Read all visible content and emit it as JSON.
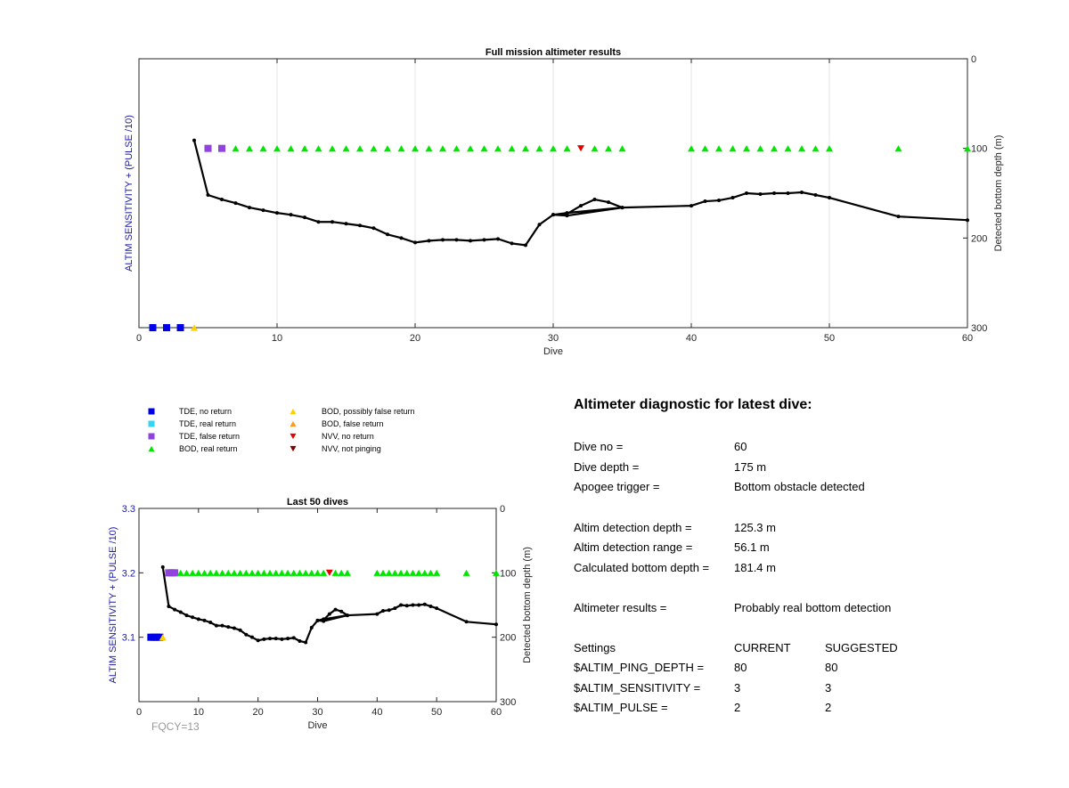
{
  "colors": {
    "tde_no_return": "#0000e6",
    "tde_real_return": "#33d6f0",
    "tde_false_return": "#8e44dd",
    "bod_real_return": "#00e600",
    "bod_possibly_false": "#ffd000",
    "bod_false": "#ff9a1a",
    "nvv_no_return": "#e60000",
    "nvv_not_pinging": "#800000",
    "line": "#000000",
    "grid": "#e4e4e4"
  },
  "legend": [
    {
      "label": "TDE, no return",
      "shape": "square",
      "color_key": "tde_no_return"
    },
    {
      "label": "TDE, real return",
      "shape": "square",
      "color_key": "tde_real_return"
    },
    {
      "label": "TDE, false return",
      "shape": "square",
      "color_key": "tde_false_return"
    },
    {
      "label": "BOD, real return",
      "shape": "triangle-up",
      "color_key": "bod_real_return"
    },
    {
      "label": "BOD, possibly false return",
      "shape": "triangle-up",
      "color_key": "bod_possibly_false"
    },
    {
      "label": "BOD, false return",
      "shape": "triangle-up",
      "color_key": "bod_false"
    },
    {
      "label": "NVV, no return",
      "shape": "triangle-down",
      "color_key": "nvv_no_return"
    },
    {
      "label": "NVV, not pinging",
      "shape": "triangle-down",
      "color_key": "nvv_not_pinging"
    }
  ],
  "chart_data": [
    {
      "type": "scatter",
      "title": "Full mission altimeter results",
      "xlabel": "Dive",
      "ylabel_left": "ALTIM SENSITIVITY + (PULSE /10)",
      "ylabel_right": "Detected bottom depth (m)",
      "xlim": [
        0,
        60
      ],
      "xticks": [
        0,
        10,
        20,
        30,
        40,
        50,
        60
      ],
      "ylim_right": [
        0,
        300
      ],
      "yticks_right": [
        0,
        100,
        200,
        300
      ],
      "yticks_left": [],
      "grid": "x",
      "marker_baseline": 300,
      "markers": [
        {
          "x": 1,
          "y": 300,
          "cat": "tde_no_return"
        },
        {
          "x": 2,
          "y": 300,
          "cat": "tde_no_return"
        },
        {
          "x": 3,
          "y": 300,
          "cat": "tde_no_return"
        },
        {
          "x": 4,
          "y": 300,
          "cat": "bod_possibly_false"
        },
        {
          "x": 5,
          "y": 100,
          "cat": "tde_false_return"
        },
        {
          "x": 6,
          "y": 100,
          "cat": "tde_false_return"
        },
        {
          "x": 7,
          "y": 100,
          "cat": "bod_real_return"
        },
        {
          "x": 8,
          "y": 100,
          "cat": "bod_real_return"
        },
        {
          "x": 9,
          "y": 100,
          "cat": "bod_real_return"
        },
        {
          "x": 10,
          "y": 100,
          "cat": "bod_real_return"
        },
        {
          "x": 11,
          "y": 100,
          "cat": "bod_real_return"
        },
        {
          "x": 12,
          "y": 100,
          "cat": "bod_real_return"
        },
        {
          "x": 13,
          "y": 100,
          "cat": "bod_real_return"
        },
        {
          "x": 14,
          "y": 100,
          "cat": "bod_real_return"
        },
        {
          "x": 15,
          "y": 100,
          "cat": "bod_real_return"
        },
        {
          "x": 16,
          "y": 100,
          "cat": "bod_real_return"
        },
        {
          "x": 17,
          "y": 100,
          "cat": "bod_real_return"
        },
        {
          "x": 18,
          "y": 100,
          "cat": "bod_real_return"
        },
        {
          "x": 19,
          "y": 100,
          "cat": "bod_real_return"
        },
        {
          "x": 20,
          "y": 100,
          "cat": "bod_real_return"
        },
        {
          "x": 21,
          "y": 100,
          "cat": "bod_real_return"
        },
        {
          "x": 22,
          "y": 100,
          "cat": "bod_real_return"
        },
        {
          "x": 23,
          "y": 100,
          "cat": "bod_real_return"
        },
        {
          "x": 24,
          "y": 100,
          "cat": "bod_real_return"
        },
        {
          "x": 25,
          "y": 100,
          "cat": "bod_real_return"
        },
        {
          "x": 26,
          "y": 100,
          "cat": "bod_real_return"
        },
        {
          "x": 27,
          "y": 100,
          "cat": "bod_real_return"
        },
        {
          "x": 28,
          "y": 100,
          "cat": "bod_real_return"
        },
        {
          "x": 29,
          "y": 100,
          "cat": "bod_real_return"
        },
        {
          "x": 30,
          "y": 100,
          "cat": "bod_real_return"
        },
        {
          "x": 31,
          "y": 100,
          "cat": "bod_real_return"
        },
        {
          "x": 32,
          "y": 100,
          "cat": "nvv_no_return"
        },
        {
          "x": 33,
          "y": 100,
          "cat": "bod_real_return"
        },
        {
          "x": 34,
          "y": 100,
          "cat": "bod_real_return"
        },
        {
          "x": 35,
          "y": 100,
          "cat": "bod_real_return"
        },
        {
          "x": 40,
          "y": 100,
          "cat": "bod_real_return"
        },
        {
          "x": 41,
          "y": 100,
          "cat": "bod_real_return"
        },
        {
          "x": 42,
          "y": 100,
          "cat": "bod_real_return"
        },
        {
          "x": 43,
          "y": 100,
          "cat": "bod_real_return"
        },
        {
          "x": 44,
          "y": 100,
          "cat": "bod_real_return"
        },
        {
          "x": 45,
          "y": 100,
          "cat": "bod_real_return"
        },
        {
          "x": 46,
          "y": 100,
          "cat": "bod_real_return"
        },
        {
          "x": 47,
          "y": 100,
          "cat": "bod_real_return"
        },
        {
          "x": 48,
          "y": 100,
          "cat": "bod_real_return"
        },
        {
          "x": 49,
          "y": 100,
          "cat": "bod_real_return"
        },
        {
          "x": 50,
          "y": 100,
          "cat": "bod_real_return"
        },
        {
          "x": 55,
          "y": 100,
          "cat": "bod_real_return"
        },
        {
          "x": 60,
          "y": 100,
          "cat": "bod_real_return"
        }
      ],
      "depth_line": {
        "x": [
          4,
          5,
          6,
          7,
          8,
          9,
          10,
          11,
          12,
          13,
          14,
          15,
          16,
          17,
          18,
          19,
          20,
          21,
          22,
          23,
          24,
          25,
          26,
          27,
          28,
          29,
          30,
          31,
          32,
          33,
          34,
          35,
          31,
          30,
          31,
          35,
          40,
          41,
          42,
          43,
          44,
          45,
          46,
          47,
          48,
          49,
          50,
          55,
          60
        ],
        "y": [
          91,
          152,
          157,
          161,
          166,
          169,
          172,
          174,
          177,
          182,
          182,
          184,
          186,
          189,
          196,
          200,
          205,
          203,
          202,
          202,
          203,
          202,
          201,
          206,
          208,
          185,
          174,
          173,
          164,
          157,
          160,
          166,
          175,
          174,
          172,
          166,
          164,
          159,
          158,
          155,
          150,
          151,
          150,
          150,
          149,
          152,
          155,
          176,
          180
        ]
      }
    },
    {
      "type": "scatter",
      "title": "Last 50 dives",
      "xlabel": "Dive",
      "ylabel_left": "ALTIM SENSITIVITY + (PULSE /10)",
      "ylabel_right": "Detected bottom depth (m)",
      "xlim": [
        0,
        60
      ],
      "xticks": [
        0,
        10,
        20,
        30,
        40,
        50,
        60
      ],
      "ylim_right": [
        0,
        300
      ],
      "yticks_right": [
        0,
        100,
        200,
        300
      ],
      "ylim_left": [
        3.0,
        3.3
      ],
      "yticks_left": [
        3.1,
        3.2,
        3.3
      ],
      "grid": "none",
      "note": "FQCY=13",
      "markers": [
        {
          "x": 2,
          "y": 200,
          "cat": "tde_no_return"
        },
        {
          "x": 2.5,
          "y": 200,
          "cat": "tde_no_return"
        },
        {
          "x": 3,
          "y": 200,
          "cat": "tde_no_return"
        },
        {
          "x": 3.5,
          "y": 200,
          "cat": "tde_no_return"
        },
        {
          "x": 4,
          "y": 200,
          "cat": "bod_possibly_false"
        },
        {
          "x": 5,
          "y": 100,
          "cat": "tde_false_return"
        },
        {
          "x": 5.5,
          "y": 100,
          "cat": "tde_false_return"
        },
        {
          "x": 6,
          "y": 100,
          "cat": "tde_false_return"
        },
        {
          "x": 7,
          "y": 100,
          "cat": "bod_real_return"
        },
        {
          "x": 8,
          "y": 100,
          "cat": "bod_real_return"
        },
        {
          "x": 9,
          "y": 100,
          "cat": "bod_real_return"
        },
        {
          "x": 10,
          "y": 100,
          "cat": "bod_real_return"
        },
        {
          "x": 11,
          "y": 100,
          "cat": "bod_real_return"
        },
        {
          "x": 12,
          "y": 100,
          "cat": "bod_real_return"
        },
        {
          "x": 13,
          "y": 100,
          "cat": "bod_real_return"
        },
        {
          "x": 14,
          "y": 100,
          "cat": "bod_real_return"
        },
        {
          "x": 15,
          "y": 100,
          "cat": "bod_real_return"
        },
        {
          "x": 16,
          "y": 100,
          "cat": "bod_real_return"
        },
        {
          "x": 17,
          "y": 100,
          "cat": "bod_real_return"
        },
        {
          "x": 18,
          "y": 100,
          "cat": "bod_real_return"
        },
        {
          "x": 19,
          "y": 100,
          "cat": "bod_real_return"
        },
        {
          "x": 20,
          "y": 100,
          "cat": "bod_real_return"
        },
        {
          "x": 21,
          "y": 100,
          "cat": "bod_real_return"
        },
        {
          "x": 22,
          "y": 100,
          "cat": "bod_real_return"
        },
        {
          "x": 23,
          "y": 100,
          "cat": "bod_real_return"
        },
        {
          "x": 24,
          "y": 100,
          "cat": "bod_real_return"
        },
        {
          "x": 25,
          "y": 100,
          "cat": "bod_real_return"
        },
        {
          "x": 26,
          "y": 100,
          "cat": "bod_real_return"
        },
        {
          "x": 27,
          "y": 100,
          "cat": "bod_real_return"
        },
        {
          "x": 28,
          "y": 100,
          "cat": "bod_real_return"
        },
        {
          "x": 29,
          "y": 100,
          "cat": "bod_real_return"
        },
        {
          "x": 30,
          "y": 100,
          "cat": "bod_real_return"
        },
        {
          "x": 31,
          "y": 100,
          "cat": "bod_real_return"
        },
        {
          "x": 32,
          "y": 100,
          "cat": "nvv_no_return"
        },
        {
          "x": 33,
          "y": 100,
          "cat": "bod_real_return"
        },
        {
          "x": 34,
          "y": 100,
          "cat": "bod_real_return"
        },
        {
          "x": 35,
          "y": 100,
          "cat": "bod_real_return"
        },
        {
          "x": 40,
          "y": 100,
          "cat": "bod_real_return"
        },
        {
          "x": 41,
          "y": 100,
          "cat": "bod_real_return"
        },
        {
          "x": 42,
          "y": 100,
          "cat": "bod_real_return"
        },
        {
          "x": 43,
          "y": 100,
          "cat": "bod_real_return"
        },
        {
          "x": 44,
          "y": 100,
          "cat": "bod_real_return"
        },
        {
          "x": 45,
          "y": 100,
          "cat": "bod_real_return"
        },
        {
          "x": 46,
          "y": 100,
          "cat": "bod_real_return"
        },
        {
          "x": 47,
          "y": 100,
          "cat": "bod_real_return"
        },
        {
          "x": 48,
          "y": 100,
          "cat": "bod_real_return"
        },
        {
          "x": 49,
          "y": 100,
          "cat": "bod_real_return"
        },
        {
          "x": 50,
          "y": 100,
          "cat": "bod_real_return"
        },
        {
          "x": 55,
          "y": 100,
          "cat": "bod_real_return"
        },
        {
          "x": 60,
          "y": 100,
          "cat": "bod_real_return"
        }
      ],
      "depth_line": {
        "x": [
          4,
          5,
          6,
          7,
          8,
          9,
          10,
          11,
          12,
          13,
          14,
          15,
          16,
          17,
          18,
          19,
          20,
          21,
          22,
          23,
          24,
          25,
          26,
          27,
          28,
          29,
          30,
          31,
          32,
          33,
          34,
          35,
          31,
          30,
          31,
          35,
          40,
          41,
          42,
          43,
          44,
          45,
          46,
          47,
          48,
          49,
          50,
          55,
          60
        ],
        "y": [
          91,
          152,
          157,
          161,
          166,
          169,
          172,
          174,
          177,
          182,
          182,
          184,
          186,
          189,
          196,
          200,
          205,
          203,
          202,
          202,
          203,
          202,
          201,
          206,
          208,
          185,
          174,
          173,
          164,
          157,
          160,
          166,
          175,
          174,
          172,
          166,
          164,
          159,
          158,
          155,
          150,
          151,
          150,
          150,
          149,
          152,
          155,
          176,
          180
        ]
      }
    }
  ],
  "diagnostic": {
    "heading": "Altimeter diagnostic for latest dive:",
    "rows": [
      {
        "label": "Dive no =",
        "value": "60"
      },
      {
        "label": "Dive depth =",
        "value": "175 m"
      },
      {
        "label": "Apogee trigger =",
        "value": "Bottom obstacle detected"
      },
      {
        "label": "Altim detection depth =",
        "value": "125.3 m"
      },
      {
        "label": "Altim detection range =",
        "value": "56.1 m"
      },
      {
        "label": "Calculated bottom depth =",
        "value": "181.4 m"
      },
      {
        "label": "Altimeter results =",
        "value": "Probably real bottom detection"
      }
    ],
    "settings": {
      "header": [
        "Settings",
        "CURRENT",
        "SUGGESTED"
      ],
      "rows": [
        {
          "label": "$ALTIM_PING_DEPTH =",
          "current": "80",
          "suggested": "80"
        },
        {
          "label": "$ALTIM_SENSITIVITY =",
          "current": "3",
          "suggested": "3"
        },
        {
          "label": "$ALTIM_PULSE =",
          "current": "2",
          "suggested": "2"
        }
      ]
    }
  }
}
